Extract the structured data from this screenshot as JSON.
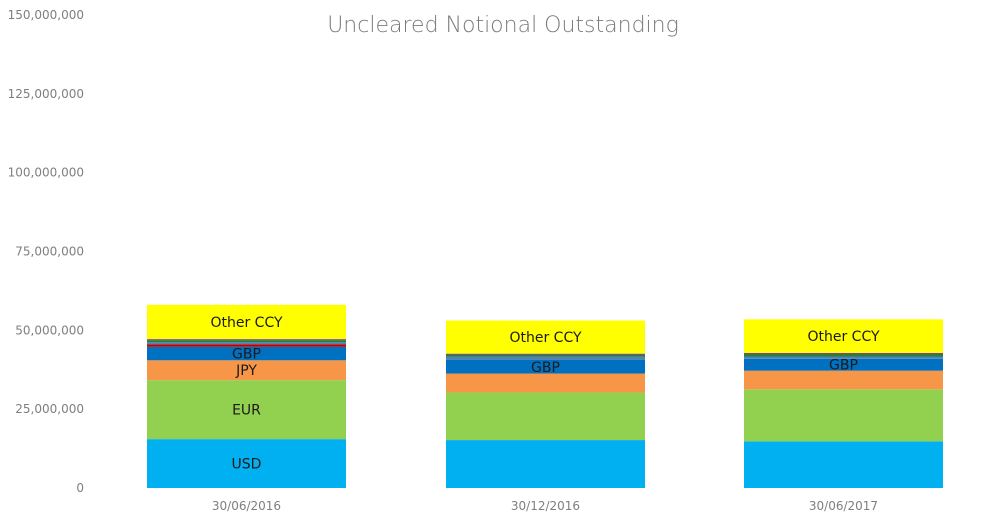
{
  "chart_data": {
    "type": "bar",
    "stacked": true,
    "title": "Uncleared Notional Outstanding",
    "xlabel": "",
    "ylabel": "",
    "ylim": [
      0,
      150000000
    ],
    "yticks": [
      0,
      25000000,
      50000000,
      75000000,
      100000000,
      125000000,
      150000000
    ],
    "ytick_labels": [
      "0",
      "25,000,000",
      "50,000,000",
      "75,000,000",
      "100,000,000",
      "125,000,000",
      "150,000,000"
    ],
    "categories": [
      "30/06/2016",
      "30/12/2016",
      "30/06/2017"
    ],
    "grid": false,
    "series": [
      {
        "label": "USD",
        "color": "#00b0f0",
        "values": [
          15500000,
          15200000,
          14800000
        ]
      },
      {
        "label": "EUR",
        "color": "#92d050",
        "values": [
          18700000,
          15100000,
          16500000
        ]
      },
      {
        "label": "JPY",
        "color": "#f79646",
        "values": [
          6300000,
          6000000,
          5900000
        ]
      },
      {
        "label": "GBP",
        "color": "#0070c0",
        "values": [
          4300000,
          4300000,
          3800000
        ]
      },
      {
        "label": "",
        "color": "#c00000",
        "values": [
          800000,
          0,
          0
        ]
      },
      {
        "label": "",
        "color": "#4f81bd",
        "values": [
          600000,
          1000000,
          700000
        ]
      },
      {
        "label": "",
        "color": "#2e7d32",
        "values": [
          700000,
          700000,
          800000
        ]
      },
      {
        "label": "",
        "color": "#7030a0",
        "values": [
          300000,
          300000,
          300000
        ]
      },
      {
        "label": "Other CCY",
        "color": "#ffff00",
        "values": [
          10900000,
          10500000,
          10700000
        ]
      }
    ],
    "segment_labels": [
      [
        "USD",
        "EUR",
        "JPY",
        "GBP",
        "",
        "",
        "",
        "",
        "Other CCY"
      ],
      [
        "",
        "",
        "",
        "GBP",
        "",
        "",
        "",
        "",
        "Other CCY"
      ],
      [
        "",
        "",
        "",
        "GBP",
        "",
        "",
        "",
        "",
        "Other CCY"
      ]
    ]
  }
}
